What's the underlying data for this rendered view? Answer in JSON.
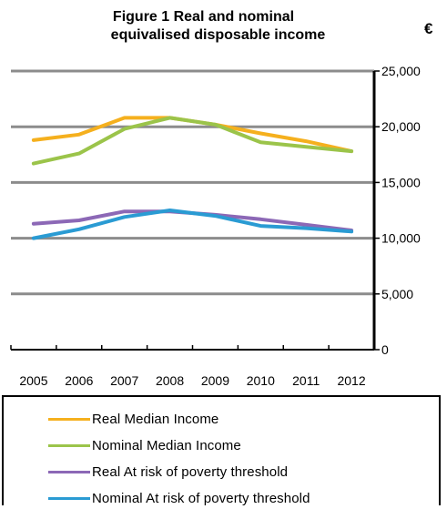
{
  "title_line1": "Figure 1  Real and nominal",
  "title_line2": "equivalised disposable income",
  "unit_label": "€",
  "chart_data": {
    "type": "line",
    "title": "Figure 1  Real and nominal equivalised disposable income",
    "ylabel": "€",
    "x": [
      "2005",
      "2006",
      "2007",
      "2008",
      "2009",
      "2010",
      "2011",
      "2012"
    ],
    "ylim": [
      0,
      25000
    ],
    "yticks": [
      "0",
      "5,000",
      "10,000",
      "15,000",
      "20,000",
      "25,000"
    ],
    "grid": true,
    "y_axis_side": "right",
    "legend_position": "bottom",
    "series": [
      {
        "name": "Real Median Income",
        "color": "#F5B01E",
        "values": [
          18800,
          19300,
          20800,
          20800,
          20200,
          19400,
          18700,
          17800
        ]
      },
      {
        "name": "Nominal Median Income",
        "color": "#9BC44A",
        "values": [
          16700,
          17600,
          19800,
          20800,
          20200,
          18600,
          18200,
          17800
        ]
      },
      {
        "name": "Real At risk of poverty threshold",
        "color": "#8C68B6",
        "values": [
          11300,
          11600,
          12400,
          12400,
          12100,
          11700,
          11200,
          10700
        ]
      },
      {
        "name": "Nominal At risk of poverty threshold",
        "color": "#2A9BD3",
        "values": [
          10000,
          10800,
          11900,
          12500,
          12000,
          11100,
          10900,
          10600
        ]
      }
    ]
  }
}
